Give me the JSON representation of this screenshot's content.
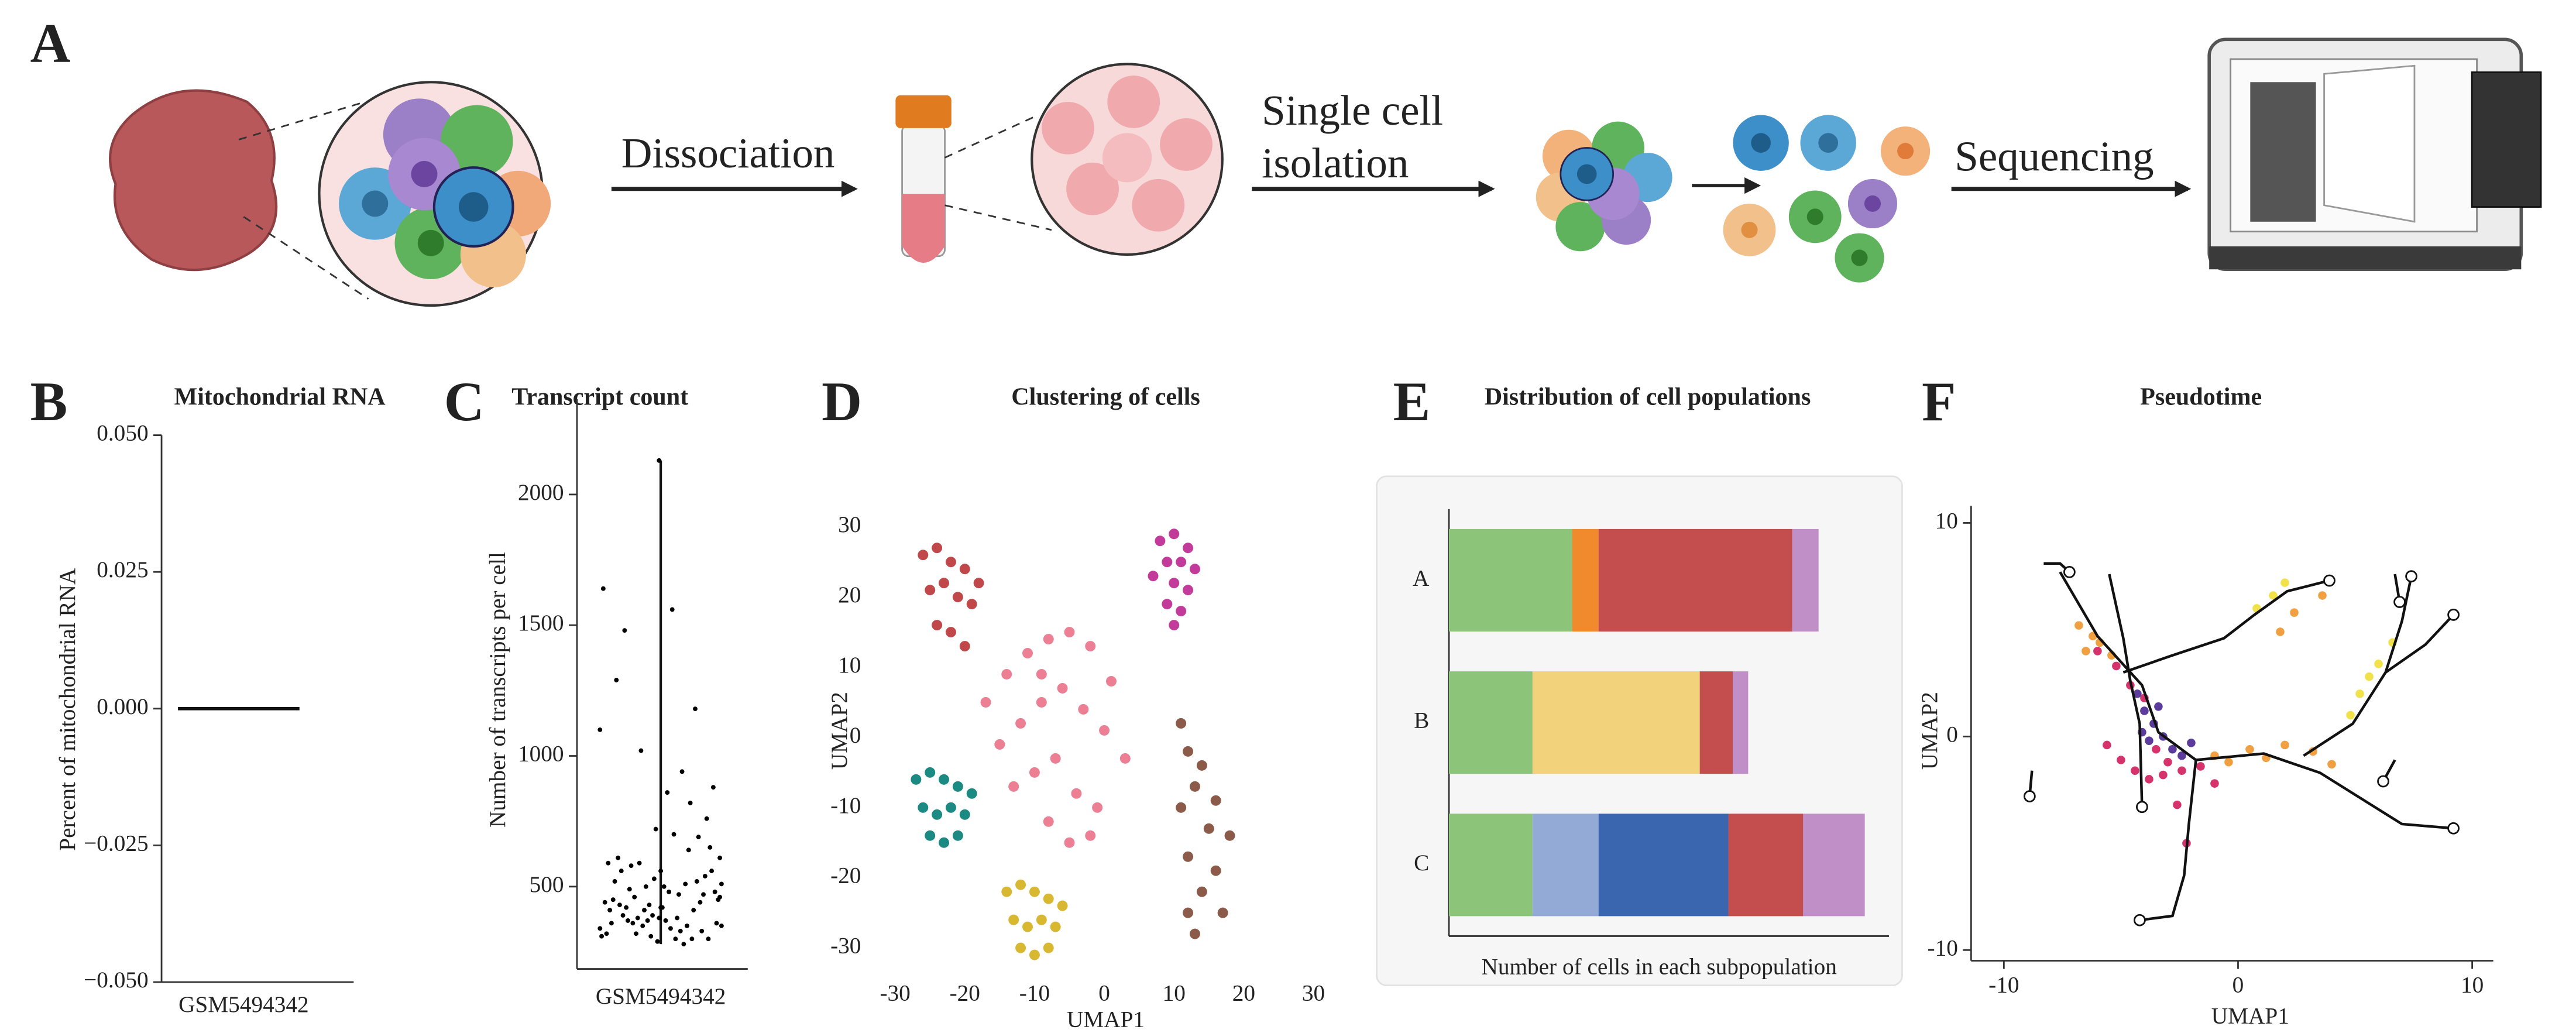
{
  "diagram": {
    "panel": "A",
    "steps": [
      [
        "Dissociation"
      ],
      [
        "Single cell",
        "isolation"
      ],
      [
        "Sequencing"
      ]
    ]
  },
  "chart_data": [
    {
      "panel": "B",
      "type": "violin",
      "title": "Mitochondrial RNA",
      "y_label": "Percent of mitochondrial RNA",
      "categories": [
        "GSM5494342"
      ],
      "values": [
        0
      ],
      "ylim": [
        -0.05,
        0.05
      ],
      "yticks": [
        {
          "value": -0.05,
          "label": "−0.050"
        },
        {
          "value": -0.025,
          "label": "−0.025"
        },
        {
          "value": 0,
          "label": "0.000"
        },
        {
          "value": 0.025,
          "label": "0.025"
        },
        {
          "value": 0.05,
          "label": "0.050"
        }
      ]
    },
    {
      "panel": "C",
      "type": "strip",
      "title": "Transcript count",
      "y_label": "Number of transcripts per cell",
      "categories": [
        "GSM5494342"
      ],
      "values": [
        340,
        420,
        510,
        380,
        610,
        290,
        450,
        720,
        360,
        530,
        480,
        390,
        880,
        310,
        560,
        430,
        650,
        370,
        300,
        500,
        760,
        410,
        540,
        350,
        470,
        1020,
        330,
        590,
        440,
        380,
        690,
        320,
        520,
        460,
        1180,
        360,
        410,
        580,
        300,
        490,
        820,
        370,
        640,
        420,
        350,
        1480,
        510,
        390,
        280,
        560,
        940,
        430,
        330,
        610,
        470,
        1290,
        380,
        520,
        300,
        450,
        700,
        360,
        1560,
        410,
        340,
        590,
        480,
        320,
        860,
        440,
        370,
        1640,
        500,
        310,
        420,
        1100,
        560,
        350,
        2130,
        460
      ],
      "ylim": [
        185,
        2365
      ],
      "yticks": [
        500,
        1000,
        1500,
        2000
      ]
    },
    {
      "panel": "D",
      "type": "scatter",
      "title": "Clustering of cells",
      "x_label": "UMAP1",
      "y_label": "UMAP2",
      "xlim": [
        -33,
        32
      ],
      "ylim": [
        -33,
        33
      ],
      "xticks": [
        -30,
        -20,
        -10,
        0,
        10,
        20,
        30
      ],
      "yticks": [
        -30,
        -20,
        -10,
        0,
        10,
        20,
        30
      ],
      "series": [
        {
          "color": "#c0484a",
          "x": [
            -26,
            -24,
            -22,
            -20,
            -18,
            -25,
            -23,
            -21,
            -19,
            -24,
            -22,
            -20
          ],
          "y": [
            26,
            27,
            25,
            24,
            22,
            21,
            22,
            20,
            19,
            16,
            15,
            13
          ]
        },
        {
          "color": "#ec7f93",
          "x": [
            -17,
            -14,
            -11,
            -8,
            -5,
            -2,
            1,
            -15,
            -12,
            -9,
            -6,
            -3,
            0,
            3,
            -13,
            -10,
            -7,
            -4,
            -1,
            -8,
            -5,
            -9,
            -2
          ],
          "y": [
            5,
            9,
            12,
            14,
            15,
            13,
            8,
            -1,
            2,
            5,
            7,
            4,
            1,
            -3,
            -7,
            -5,
            -3,
            -8,
            -10,
            -12,
            -15,
            9,
            -14
          ]
        },
        {
          "color": "#c23a9a",
          "x": [
            8,
            10,
            12,
            9,
            11,
            13,
            7,
            10,
            12,
            9,
            11,
            10
          ],
          "y": [
            28,
            29,
            27,
            25,
            25,
            24,
            23,
            22,
            21,
            19,
            18,
            16
          ]
        },
        {
          "color": "#1a8a82",
          "x": [
            -27,
            -25,
            -23,
            -21,
            -19,
            -26,
            -24,
            -22,
            -20,
            -25,
            -23,
            -21
          ],
          "y": [
            -6,
            -5,
            -6,
            -7,
            -8,
            -10,
            -11,
            -10,
            -11,
            -14,
            -15,
            -14
          ]
        },
        {
          "color": "#d8b830",
          "x": [
            -14,
            -12,
            -10,
            -8,
            -6,
            -13,
            -11,
            -9,
            -7,
            -12,
            -10,
            -8
          ],
          "y": [
            -22,
            -21,
            -22,
            -23,
            -24,
            -26,
            -27,
            -26,
            -27,
            -30,
            -31,
            -30
          ]
        },
        {
          "color": "#8b5a48",
          "x": [
            11,
            12,
            14,
            13,
            16,
            11,
            15,
            18,
            12,
            16,
            14,
            12,
            17,
            13
          ],
          "y": [
            2,
            -2,
            -4,
            -7,
            -9,
            -10,
            -13,
            -14,
            -17,
            -19,
            -22,
            -25,
            -25,
            -28
          ]
        }
      ]
    },
    {
      "panel": "E",
      "type": "stacked_bar",
      "title": "Distribution of cell populations",
      "x_label": "Number of cells in each subpopulation",
      "categories": [
        "A",
        "B",
        "C"
      ],
      "xlim": [
        0,
        100
      ],
      "series": [
        {
          "color": "#8cc47a",
          "values": [
            28,
            19,
            19
          ]
        },
        {
          "color": "#f08a2c",
          "values": [
            6,
            null,
            null
          ]
        },
        {
          "color": "#f2d27a",
          "values": [
            null,
            38,
            null
          ]
        },
        {
          "color": "#93a9d6",
          "values": [
            null,
            null,
            15
          ]
        },
        {
          "color": "#3a66b0",
          "values": [
            null,
            null,
            29.5
          ]
        },
        {
          "color": "#c44e4e",
          "values": [
            44,
            7.5,
            17
          ]
        },
        {
          "color": "#c08fc8",
          "values": [
            6,
            3.5,
            14
          ]
        }
      ]
    },
    {
      "panel": "F",
      "type": "trajectory",
      "title": "Pseudotime",
      "x_label": "UMAP1",
      "y_label": "UMAP2",
      "xlim": [
        -11.4,
        10.9
      ],
      "ylim": [
        -10.5,
        10.8
      ],
      "xticks": [
        -10,
        0,
        10
      ],
      "yticks": [
        -10,
        0,
        10
      ],
      "series": [
        {
          "color": "#f0a040",
          "x": [
            -6.8,
            -6.2,
            -5.9,
            -5.4,
            -1.0,
            0.5,
            1.2,
            2.0,
            3.2,
            4.0,
            -0.4,
            1.8,
            2.4,
            3.6,
            -6.5
          ],
          "y": [
            5.2,
            4.7,
            4.4,
            3.8,
            -0.9,
            -0.6,
            -1.0,
            -0.4,
            -0.7,
            -1.3,
            -1.2,
            4.9,
            5.8,
            6.6,
            4.0
          ]
        },
        {
          "color": "#f2e24a",
          "x": [
            4.8,
            5.2,
            5.6,
            6.0,
            6.6,
            2.0,
            1.5,
            0.8
          ],
          "y": [
            1.0,
            2.0,
            2.8,
            3.4,
            4.4,
            7.2,
            6.6,
            6.0
          ]
        },
        {
          "color": "#d6336c",
          "x": [
            -6.0,
            -5.2,
            -4.6,
            -4.0,
            -3.5,
            -3.0,
            -2.4,
            -1.6,
            -5.6,
            -5.0,
            -4.4,
            -3.8,
            -2.6,
            -2.2,
            -3.2,
            -1.0
          ],
          "y": [
            4.0,
            3.3,
            2.4,
            1.8,
            -0.6,
            -1.2,
            -1.6,
            -1.4,
            -0.4,
            -1.1,
            -1.6,
            -2.0,
            -3.2,
            -5.0,
            -1.8,
            -2.2
          ]
        },
        {
          "color": "#5b3c9c",
          "x": [
            -4.3,
            -4.0,
            -3.6,
            -3.2,
            -3.8,
            -2.8,
            -2.4,
            -3.4,
            -4.1,
            -2.0
          ],
          "y": [
            2.0,
            1.2,
            0.6,
            0.0,
            -0.2,
            -0.6,
            -0.9,
            1.4,
            0.2,
            -0.3
          ]
        }
      ],
      "trajectory": [
        {
          "x": [
            -7.6,
            -6.0,
            -4.1,
            -3.4,
            -1.8,
            1.1,
            3.5,
            7.0,
            9.2
          ],
          "y": [
            7.7,
            4.7,
            2.4,
            0.2,
            -1.1,
            -0.8,
            -1.7,
            -4.1,
            -4.3
          ]
        },
        {
          "x": [
            -5.5,
            -4.9,
            -4.6,
            -4.2,
            -4.1
          ],
          "y": [
            7.6,
            4.6,
            2.6,
            0.6,
            -3.3
          ]
        },
        {
          "x": [
            -4.9,
            -2.8,
            -0.6,
            0.7,
            2.1,
            3.9
          ],
          "y": [
            3.0,
            3.8,
            4.6,
            5.7,
            6.8,
            7.3
          ]
        },
        {
          "x": [
            -1.8,
            -2.1,
            -2.3,
            -2.8,
            -4.2
          ],
          "y": [
            -1.1,
            -4.1,
            -6.5,
            -8.4,
            -8.6
          ]
        },
        {
          "x": [
            2.8,
            4.9,
            6.3,
            7.0,
            7.4
          ],
          "y": [
            -0.9,
            0.6,
            3.0,
            5.4,
            7.5
          ]
        },
        {
          "x": [
            6.3,
            8.0,
            9.2
          ],
          "y": [
            3.0,
            4.3,
            5.7
          ]
        },
        {
          "x": [
            -8.3,
            -7.6,
            -7.2
          ],
          "y": [
            8.1,
            8.1,
            7.7
          ]
        },
        {
          "x": [
            -8.8,
            -8.9
          ],
          "y": [
            -1.6,
            -2.8
          ]
        },
        {
          "x": [
            6.7,
            6.2
          ],
          "y": [
            -1.1,
            -2.1
          ]
        },
        {
          "x": [
            6.7,
            6.9
          ],
          "y": [
            7.6,
            6.3
          ]
        }
      ]
    }
  ]
}
